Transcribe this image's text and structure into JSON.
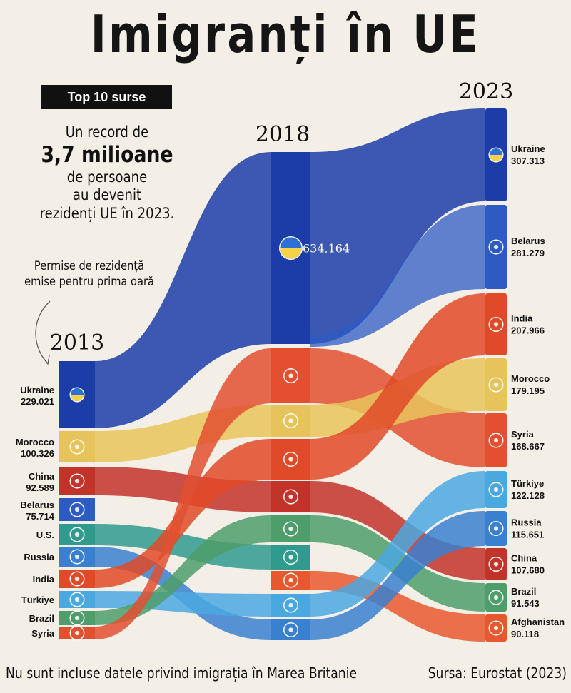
{
  "header": {
    "title": "Imigranți în UE",
    "badge": "Top 10 surse",
    "intro": [
      "Un record de",
      "3,7 milioane",
      "de persoane",
      "au devenit",
      "rezidenți UE în 2023."
    ],
    "permits_note": [
      "Permise de rezidență",
      "emise pentru prima oară"
    ]
  },
  "footer": {
    "note": "Nu sunt incluse datele privind imigrația în Marea Britanie",
    "source": "Sursa: Eurostat (2023)"
  },
  "chart_data": {
    "type": "sankey",
    "title": "Imigranți în UE",
    "years": [
      "2013",
      "2018",
      "2023"
    ],
    "colors": {
      "Ukraine": "#1c3da8",
      "Morocco": "#e7c45b",
      "China": "#c2342a",
      "Belarus": "#2c5bc4",
      "U.S.": "#2f9a8e",
      "Russia": "#3a80d0",
      "India": "#e04a28",
      "Türkiye": "#4aa8e0",
      "Brazil": "#4d9e6a",
      "Syria": "#e25030",
      "Afghanistan": "#e8582e"
    },
    "nodes_2013": [
      {
        "country": "Ukraine",
        "label": "Ukraine",
        "value": "229.021"
      },
      {
        "country": "Morocco",
        "label": "Morocco",
        "value": "100.326"
      },
      {
        "country": "China",
        "label": "China",
        "value": "92.589"
      },
      {
        "country": "Belarus",
        "label": "Belarus",
        "value": "75.714"
      },
      {
        "country": "U.S.",
        "label": "U.S.",
        "value": ""
      },
      {
        "country": "Russia",
        "label": "Russia",
        "value": ""
      },
      {
        "country": "India",
        "label": "India",
        "value": ""
      },
      {
        "country": "Türkiye",
        "label": "Türkiye",
        "value": ""
      },
      {
        "country": "Brazil",
        "label": "Brazil",
        "value": ""
      },
      {
        "country": "Syria",
        "label": "Syria",
        "value": ""
      }
    ],
    "nodes_2018": [
      {
        "country": "Ukraine",
        "value": "634,164"
      },
      {
        "country": "Syria",
        "value": ""
      },
      {
        "country": "Morocco",
        "value": ""
      },
      {
        "country": "India",
        "value": ""
      },
      {
        "country": "China",
        "value": ""
      },
      {
        "country": "Brazil",
        "value": ""
      },
      {
        "country": "U.S.",
        "value": ""
      },
      {
        "country": "Afghanistan",
        "value": ""
      },
      {
        "country": "Türkiye",
        "value": ""
      },
      {
        "country": "Russia",
        "value": ""
      }
    ],
    "nodes_2023": [
      {
        "country": "Ukraine",
        "label": "Ukraine",
        "value": "307.313"
      },
      {
        "country": "Belarus",
        "label": "Belarus",
        "value": "281.279"
      },
      {
        "country": "India",
        "label": "India",
        "value": "207.966"
      },
      {
        "country": "Morocco",
        "label": "Morocco",
        "value": "179.195"
      },
      {
        "country": "Syria",
        "label": "Syria",
        "value": "168.667"
      },
      {
        "country": "Türkiye",
        "label": "Türkiye",
        "value": "122.128"
      },
      {
        "country": "Russia",
        "label": "Russia",
        "value": "115.651"
      },
      {
        "country": "China",
        "label": "China",
        "value": "107.680"
      },
      {
        "country": "Brazil",
        "label": "Brazil",
        "value": "91.543"
      },
      {
        "country": "Afghanistan",
        "label": "Afghanistan",
        "value": "90.118"
      }
    ]
  }
}
